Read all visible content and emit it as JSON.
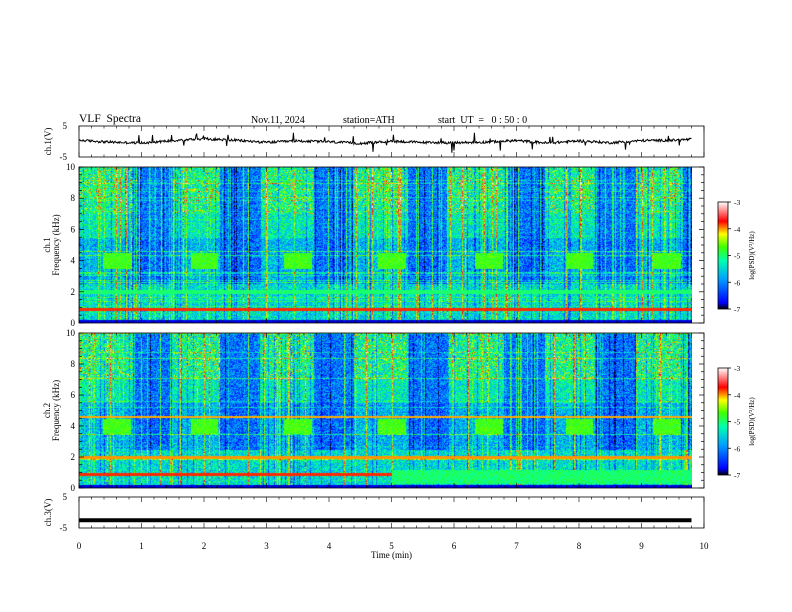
{
  "header": {
    "title": "VLF  Spectra",
    "date": "Nov.11, 2024",
    "station": "station=ATH",
    "start": "start  UT  =   0 : 50 : 0"
  },
  "chart_data": [
    {
      "type": "line",
      "panel": "ch1-waveform",
      "ylabel": "ch.1(V)",
      "ylim": [
        -5,
        5
      ],
      "yticks": [
        "5",
        "-5"
      ],
      "xlim": [
        0,
        10
      ],
      "series": [
        {
          "values_description_only": false,
          "x": [
            0,
            0.5,
            1,
            1.5,
            2,
            2.5,
            3,
            3.5,
            4,
            4.5,
            5,
            5.5,
            6,
            6.5,
            7,
            7.5,
            8,
            8.5,
            9,
            9.5,
            9.8
          ],
          "y": [
            0.4,
            -0.2,
            -0.5,
            0.3,
            0.9,
            0.4,
            -0.3,
            0.2,
            -0.1,
            -0.6,
            0.1,
            -0.3,
            -0.4,
            -0.2,
            0.3,
            -0.5,
            0.2,
            -0.4,
            0.3,
            0.4,
            0.7
          ]
        }
      ]
    },
    {
      "type": "heatmap",
      "panel": "ch1-spectrogram",
      "ylabel": "ch.1\nFrequency  (kHz)",
      "ylim": [
        0,
        10
      ],
      "yticks": [
        "0",
        "2",
        "4",
        "6",
        "8",
        "10"
      ],
      "xlim": [
        0,
        10
      ],
      "colorbar": {
        "label": "log(PSD)(V²/Hz)",
        "range": [
          -7,
          -3
        ],
        "ticks": [
          "-3",
          "-4",
          "-5",
          "-6",
          "-7"
        ]
      },
      "tone_bursts_min": [
        0.6,
        2.0,
        3.5,
        5.0,
        6.55,
        8.0,
        9.4
      ],
      "tone_freq_khz": 4.0
    },
    {
      "type": "heatmap",
      "panel": "ch2-spectrogram",
      "ylabel": "ch.2\nFrequency  (kHz)",
      "ylim": [
        0,
        10
      ],
      "yticks": [
        "0",
        "2",
        "4",
        "6",
        "8",
        "10"
      ],
      "xlim": [
        0,
        10
      ],
      "colorbar": {
        "label": "log(PSD)(V²/Hz)",
        "range": [
          -7,
          -3
        ],
        "ticks": [
          "-3",
          "-4",
          "-5",
          "-6",
          "-7"
        ]
      },
      "tone_bursts_min": [
        0.6,
        2.0,
        3.5,
        5.0,
        6.55,
        8.0,
        9.4
      ],
      "tone_freq_khz": 4.0
    },
    {
      "type": "line",
      "panel": "ch3-waveform",
      "ylabel": "ch.3(V)",
      "ylim": [
        -5,
        5
      ],
      "yticks": [
        "5",
        "-5"
      ],
      "xlim": [
        0,
        10
      ],
      "xlabel": "Time  (min)",
      "xticks": [
        "0",
        "1",
        "2",
        "3",
        "4",
        "5",
        "6",
        "7",
        "8",
        "9",
        "10"
      ],
      "series": [
        {
          "x": [
            0,
            9.8
          ],
          "y": [
            -2.5,
            -2.5
          ]
        }
      ]
    }
  ],
  "colors": {
    "axis": "#000000",
    "colormap": [
      "#000000",
      "#0000ff",
      "#00c8ff",
      "#00ff64",
      "#ffff00",
      "#ff0000",
      "#ffffff"
    ]
  }
}
